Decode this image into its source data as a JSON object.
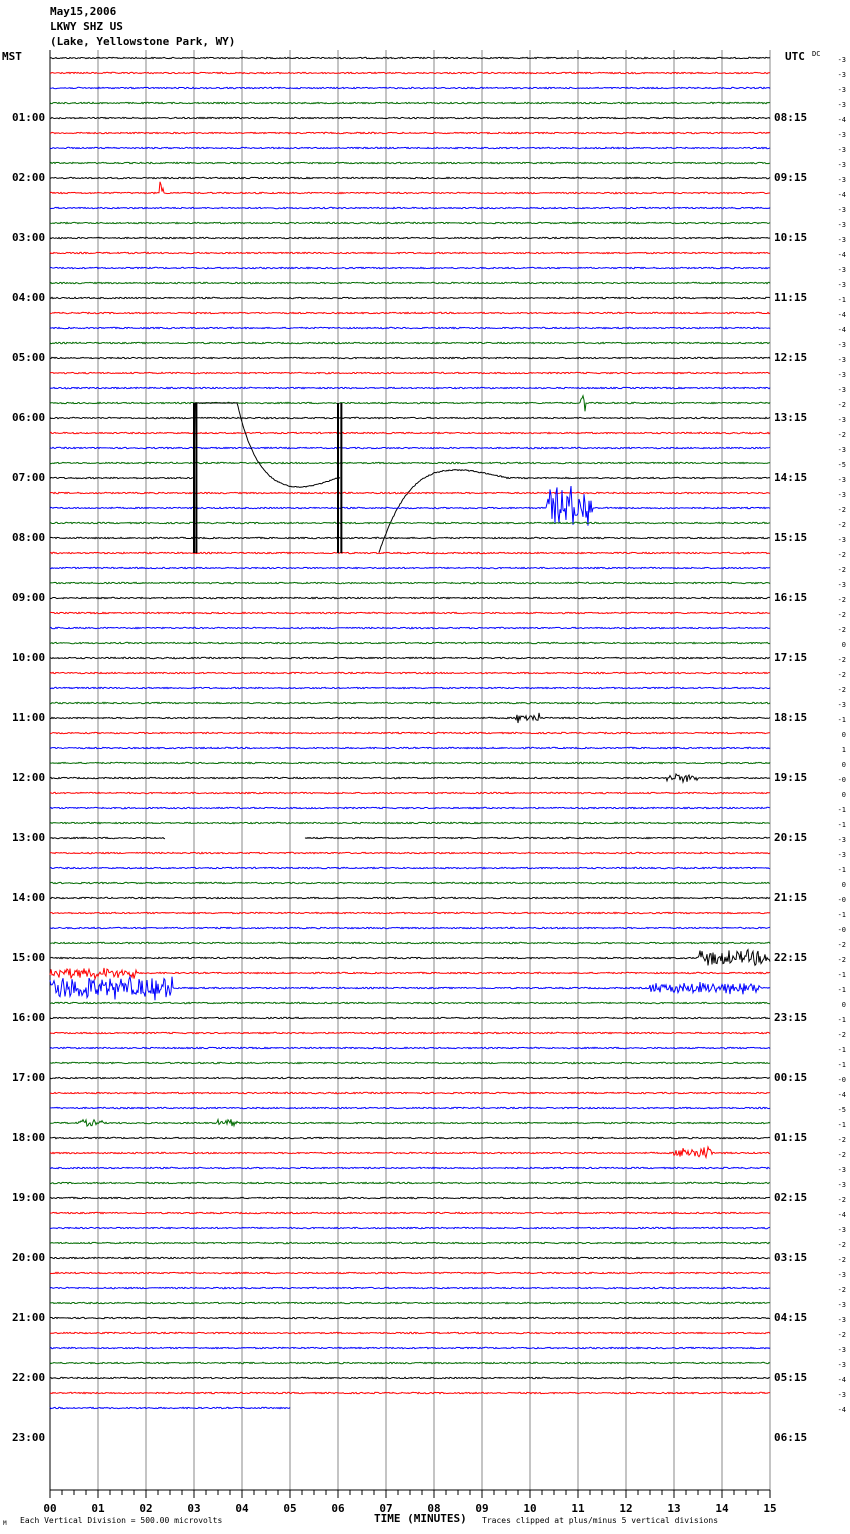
{
  "header": {
    "date": "May15,2006",
    "station": "LKWY SHZ US",
    "location": "(Lake, Yellowstone Park, WY)"
  },
  "left_axis_title": "MST",
  "right_axis_title": "UTC",
  "dc_title": "DC",
  "footer": {
    "corner_mark": "M",
    "scale_text": "Each Vertical Division =  500.00 microvolts",
    "xlabel": "TIME (MINUTES)",
    "clip_text": "Traces clipped at plus/minus 5 vertical divisions"
  },
  "chart_data": {
    "type": "line",
    "subtype": "helicorder",
    "title": "LKWY SHZ US May15,2006",
    "xlabel": "TIME (MINUTES)",
    "xlim": [
      0,
      15
    ],
    "x_ticks": [
      "00",
      "01",
      "02",
      "03",
      "04",
      "05",
      "06",
      "07",
      "08",
      "09",
      "10",
      "11",
      "12",
      "13",
      "14",
      "15"
    ],
    "trace_colors": [
      "#000000",
      "#ff0000",
      "#0000ff",
      "#006a00"
    ],
    "trace_count": 91,
    "last_trace_end_minute": 5.0,
    "clip_divisions": 5,
    "division_microvolts": 500.0,
    "mst_labels": [
      "01:00",
      "02:00",
      "03:00",
      "04:00",
      "05:00",
      "06:00",
      "07:00",
      "08:00",
      "09:00",
      "10:00",
      "11:00",
      "12:00",
      "13:00",
      "14:00",
      "15:00",
      "16:00",
      "17:00",
      "18:00",
      "19:00",
      "20:00",
      "21:00",
      "22:00",
      "23:00"
    ],
    "utc_labels": [
      "08:15",
      "09:15",
      "10:15",
      "11:15",
      "12:15",
      "13:15",
      "14:15",
      "15:15",
      "16:15",
      "17:15",
      "18:15",
      "19:15",
      "20:15",
      "21:15",
      "22:15",
      "23:15",
      "00:15",
      "01:15",
      "02:15",
      "03:15",
      "04:15",
      "05:15",
      "06:15"
    ],
    "dc_offsets": [
      "-3",
      "-3",
      "-3",
      "-3",
      "-4",
      "-3",
      "-3",
      "-3",
      "-3",
      "-4",
      "-3",
      "-3",
      "-3",
      "-4",
      "-3",
      "-3",
      "-1",
      "-4",
      "-4",
      "-3",
      "-3",
      "-3",
      "-3",
      "-2",
      "-3",
      "-2",
      "-3",
      "-5",
      "-3",
      "-3",
      "-2",
      "-2",
      "-3",
      "-2",
      "-2",
      "-3",
      "-2",
      "-2",
      "-2",
      "0",
      "-2",
      "-2",
      "-2",
      "-3",
      "-1",
      "0",
      "1",
      "0",
      "-0",
      "0",
      "-1",
      "-1",
      "-3",
      "-3",
      "-1",
      "0",
      "-0",
      "-1",
      "-0",
      "-2",
      "-2",
      "-1",
      "-1",
      "0",
      "-1",
      "-2",
      "-1",
      "-1",
      "-0",
      "-4",
      "-5",
      "-1",
      "-2",
      "-2",
      "-3",
      "-3",
      "-2",
      "-4",
      "-3",
      "-2",
      "-2",
      "-3",
      "-2",
      "-3",
      "-3",
      "-2",
      "-3",
      "-3",
      "-4",
      "-3",
      "-4"
    ],
    "events": [
      {
        "trace": 9,
        "start_min": 2.28,
        "end_min": 2.36,
        "amp_div": 1.3
      },
      {
        "trace": 23,
        "start_min": 11.05,
        "end_min": 11.15,
        "amp_div": 0.8
      },
      {
        "trace": 30,
        "start_min": 10.35,
        "end_min": 11.3,
        "amp_div": 1.6
      },
      {
        "trace": 44,
        "start_min": 9.7,
        "end_min": 10.2,
        "amp_div": 0.4
      },
      {
        "trace": 48,
        "start_min": 12.8,
        "end_min": 13.5,
        "amp_div": 0.3
      },
      {
        "trace": 60,
        "start_min": 13.5,
        "end_min": 15.0,
        "amp_div": 0.6
      },
      {
        "trace": 61,
        "start_min": 0.0,
        "end_min": 1.8,
        "amp_div": 0.45
      },
      {
        "trace": 62,
        "start_min": 0.0,
        "end_min": 2.6,
        "amp_div": 0.9
      },
      {
        "trace": 62,
        "start_min": 12.5,
        "end_min": 14.8,
        "amp_div": 0.45
      },
      {
        "trace": 71,
        "start_min": 0.6,
        "end_min": 1.1,
        "amp_div": 0.3
      },
      {
        "trace": 71,
        "start_min": 3.5,
        "end_min": 3.9,
        "amp_div": 0.3
      },
      {
        "trace": 73,
        "start_min": 13.0,
        "end_min": 13.8,
        "amp_div": 0.5
      }
    ],
    "gaps": [
      {
        "trace": 52,
        "start_min": 2.4,
        "end_min": 5.3
      }
    ],
    "large_event_trace": 28
  }
}
